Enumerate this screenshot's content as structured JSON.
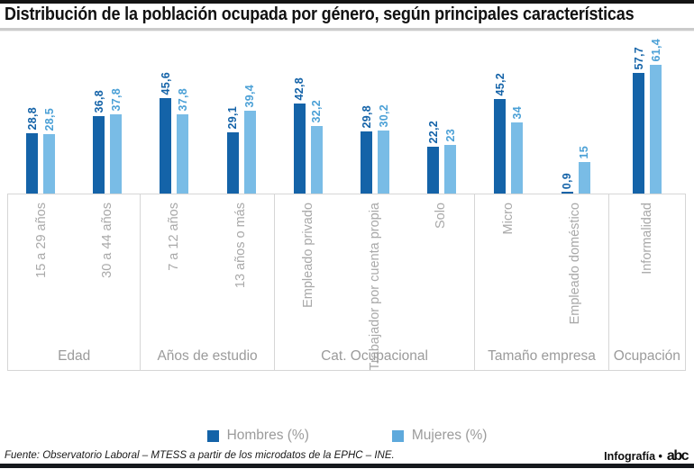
{
  "header": {
    "title": "Distribución de la población ocupada por género, según principales características"
  },
  "legend": [
    {
      "label": "Hombres (%)",
      "color": "#1463a8"
    },
    {
      "label": "Mujeres (%)",
      "color": "#5ea9dc"
    }
  ],
  "footer": {
    "source": "Fuente: Observatorio Laboral – MTESS a partir de los microdatos de la EPHC – INE.",
    "credit": "Infografía •",
    "brand": "abc"
  },
  "chart_data": {
    "type": "bar",
    "title": "Distribución de la población ocupada por género, según principales características",
    "ylim": [
      0,
      65
    ],
    "legend_position": "bottom",
    "grid": false,
    "series_meta": [
      {
        "name": "Hombres (%)",
        "color": "#1463a8",
        "label_color": "#1463a8"
      },
      {
        "name": "Mujeres (%)",
        "color": "#79bce6",
        "label_color": "#4ba0d6"
      }
    ],
    "groups": [
      {
        "label": "Edad",
        "categories": [
          {
            "label": "15 a 29 años",
            "values": [
              28.8,
              28.5
            ],
            "value_labels": [
              "28,8",
              "28,5"
            ]
          },
          {
            "label": "30 a 44 años",
            "values": [
              36.8,
              37.8
            ],
            "value_labels": [
              "36,8",
              "37,8"
            ]
          }
        ]
      },
      {
        "label": "Años de estudio",
        "categories": [
          {
            "label": "7 a 12 años",
            "values": [
              45.6,
              37.8
            ],
            "value_labels": [
              "45,6",
              "37,8"
            ]
          },
          {
            "label": "13 años o más",
            "values": [
              29.1,
              39.4
            ],
            "value_labels": [
              "29,1",
              "39,4"
            ]
          }
        ]
      },
      {
        "label": "Cat. Ocupacional",
        "categories": [
          {
            "label": "Empleado privado",
            "values": [
              42.8,
              32.2
            ],
            "value_labels": [
              "42,8",
              "32,2"
            ]
          },
          {
            "label": "Trabajador por cuenta propia",
            "values": [
              29.8,
              30.2
            ],
            "value_labels": [
              "29,8",
              "30,2"
            ]
          },
          {
            "label": "Solo",
            "values": [
              22.2,
              23
            ],
            "value_labels": [
              "22,2",
              "23"
            ]
          }
        ]
      },
      {
        "label": "Tamaño empresa",
        "categories": [
          {
            "label": "Micro",
            "values": [
              45.2,
              34
            ],
            "value_labels": [
              "45,2",
              "34"
            ]
          },
          {
            "label": "Empleado doméstico",
            "values": [
              0.9,
              15
            ],
            "value_labels": [
              "0,9",
              "15"
            ]
          }
        ]
      },
      {
        "label": "Ocupación",
        "categories": [
          {
            "label": "Informalidad",
            "values": [
              57.7,
              61.4
            ],
            "value_labels": [
              "57,7",
              "61,4"
            ]
          }
        ]
      }
    ]
  }
}
